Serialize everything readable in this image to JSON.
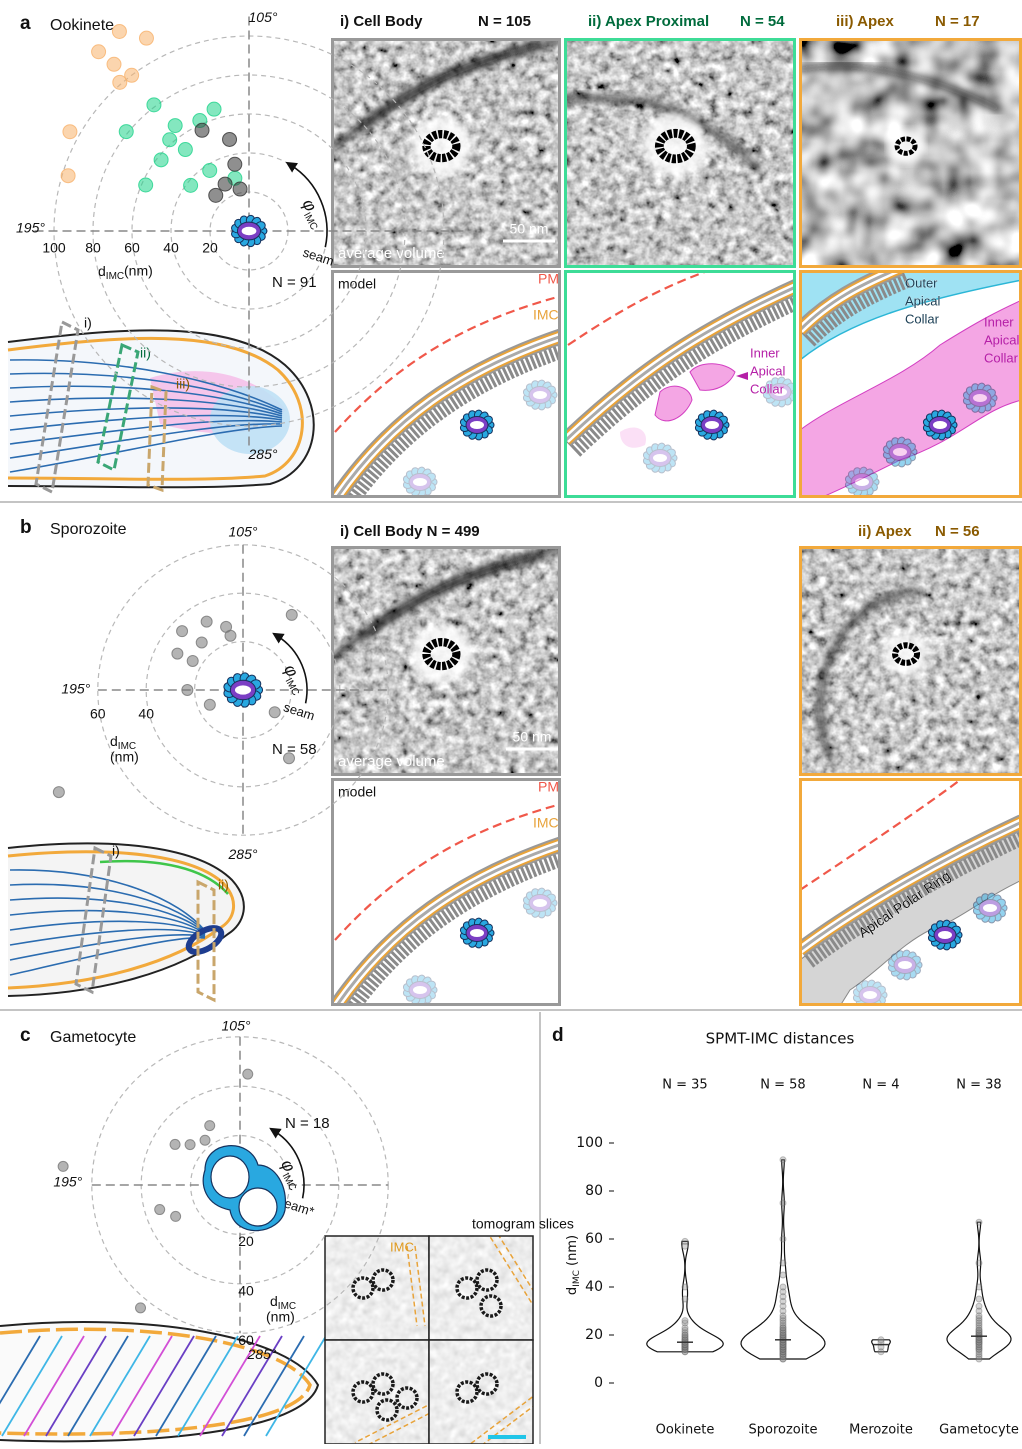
{
  "figure": {
    "a": {
      "label": "a",
      "title": "Ookinete",
      "col1": "i) Cell Body",
      "col1_n": "N = 105",
      "col2": "ii) Apex Proximal",
      "col2_n": "N = 54",
      "col3": "iii) Apex",
      "col3_n": "N = 17",
      "avg": "average volume",
      "scale": "50 nm",
      "model": "model",
      "pm": "PM",
      "imc": "IMC",
      "inner_collar": [
        "Inner",
        "Apical",
        "Collar"
      ],
      "outer_collar": [
        "Outer",
        "Apical",
        "Collar"
      ],
      "inner_collar_2": [
        "Inner",
        "Apical",
        "Collar"
      ],
      "schematic": [
        "i)",
        "ii)",
        "iii)"
      ]
    },
    "b": {
      "label": "b",
      "title": "Sporozoite",
      "col1": "i) Cell Body N = 499",
      "col3": "ii) Apex",
      "col3_n": "N = 56",
      "avg": "average volume",
      "scale": "50 nm",
      "model": "model",
      "pm": "PM",
      "imc": "IMC",
      "apr": "Apical Polar Ring",
      "schematic": [
        "i)",
        "ii)"
      ]
    },
    "c": {
      "label": "c",
      "title": "Gametocyte",
      "slices": "tomogram slices",
      "imc": "IMC"
    },
    "d": {
      "label": "d"
    }
  },
  "chart_data": [
    {
      "type": "polar_scatter",
      "rlim": [
        0,
        110
      ],
      "rticks": [
        20,
        40,
        60,
        80,
        100
      ],
      "angle_ticks": [
        {
          "value": 105,
          "label": "105°"
        },
        {
          "value": 195,
          "label": "195°"
        },
        {
          "value": 285,
          "label": "285°"
        }
      ],
      "angle_label": "φ",
      "angle_label_sub": "IMC",
      "seam_label": "seam",
      "radial_label": "d",
      "radial_label_sub": "IMC",
      "radial_unit": "(nm)",
      "n_label": "N = 91",
      "series": [
        {
          "color": "#f7b26b",
          "angles": [
            138,
            133,
            144,
            146,
            145,
            166,
            178,
            142
          ],
          "values": [
            122,
            112,
            110,
            101,
            120,
            105,
            97,
            100
          ]
        },
        {
          "color": "#1fd38b",
          "angles": [
            142,
            156,
            140,
            129,
            121,
            156,
            143,
            138,
            120,
            171,
            157,
            146
          ],
          "values": [
            81,
            81,
            66,
            62,
            65,
            58,
            53,
            37,
            28,
            58,
            38,
            62
          ]
        },
        {
          "color": "#333333",
          "angles": [
            117,
            148,
            117,
            132,
            130,
            117
          ],
          "values": [
            48,
            25,
            35,
            27,
            57,
            22
          ]
        }
      ]
    },
    {
      "type": "polar_scatter",
      "rlim": [
        0,
        60
      ],
      "rgrid": [
        20,
        40,
        60
      ],
      "rticks": [
        40,
        60
      ],
      "angle_ticks": [
        {
          "value": 105,
          "label": "105°"
        },
        {
          "value": 195,
          "label": "195°"
        },
        {
          "value": 285,
          "label": "285°"
        }
      ],
      "angle_label": "φ",
      "angle_label_sub": "IMC",
      "seam_label": "seam",
      "radial_label": "d",
      "radial_label_sub": "IMC",
      "radial_unit": "(nm)",
      "n_label": "N = 58",
      "series": [
        {
          "color": "#777777",
          "angles": [
            224,
            72,
            151,
            146,
            120,
            165,
            195,
            219,
            340,
            319,
            166,
            118,
            133
          ],
          "values": [
            87,
            37,
            35,
            26,
            27,
            24,
            23,
            15,
            16,
            34,
            31,
            23,
            32
          ]
        }
      ]
    },
    {
      "type": "polar_scatter",
      "rlim": [
        0,
        60
      ],
      "rticks": [
        20,
        40,
        60
      ],
      "angle_ticks": [
        {
          "value": 105,
          "label": "105°"
        },
        {
          "value": 195,
          "label": "195°"
        },
        {
          "value": 285,
          "label": "285°"
        }
      ],
      "angle_label": "φ",
      "angle_label_sub": "IMC",
      "seam_label": "seam*",
      "radial_label": "d",
      "radial_label_sub": "IMC",
      "radial_unit": "(nm)",
      "n_label": "N = 18",
      "series": [
        {
          "color": "#777777",
          "angles": [
            101,
            143,
            156,
            163,
            212,
            221,
            246,
            189,
            132
          ],
          "values": [
            45,
            23,
            26,
            31,
            34,
            29,
            64,
            72,
            27
          ]
        }
      ]
    },
    {
      "type": "violin",
      "title": "SPMT-IMC distances",
      "ylabel": "d",
      "ylabel_sub": "IMC",
      "ylabel_unit": " (nm)",
      "categories": [
        "Ookinete",
        "Sporozoite",
        "Merozoite",
        "Gametocyte"
      ],
      "n_labels": [
        "N = 35",
        "N = 58",
        "N = 4",
        "N = 38"
      ],
      "ylim": [
        0,
        100
      ],
      "yticks": [
        0,
        20,
        40,
        60,
        80,
        100
      ],
      "values": [
        [
          13,
          13,
          14,
          14,
          14,
          14,
          15,
          15,
          15,
          15,
          15,
          16,
          16,
          16,
          16,
          16,
          17,
          17,
          17,
          18,
          18,
          18,
          19,
          19,
          20,
          20,
          21,
          22,
          23,
          25,
          26,
          35,
          40,
          57,
          59
        ],
        [
          10,
          10,
          11,
          11,
          12,
          12,
          12,
          13,
          13,
          13,
          14,
          14,
          14,
          14,
          15,
          15,
          15,
          15,
          16,
          16,
          16,
          16,
          17,
          17,
          17,
          17,
          18,
          18,
          18,
          18,
          19,
          19,
          19,
          20,
          20,
          20,
          21,
          21,
          22,
          22,
          23,
          23,
          24,
          25,
          26,
          27,
          28,
          30,
          32,
          34,
          36,
          38,
          40,
          45,
          50,
          60,
          75,
          93
        ],
        [
          13,
          15,
          17,
          18
        ],
        [
          10,
          11,
          12,
          13,
          14,
          14,
          15,
          15,
          16,
          16,
          17,
          17,
          17,
          18,
          18,
          18,
          19,
          19,
          19,
          20,
          20,
          20,
          21,
          21,
          22,
          22,
          23,
          24,
          25,
          26,
          27,
          28,
          30,
          32,
          35,
          40,
          50,
          67
        ]
      ]
    }
  ]
}
